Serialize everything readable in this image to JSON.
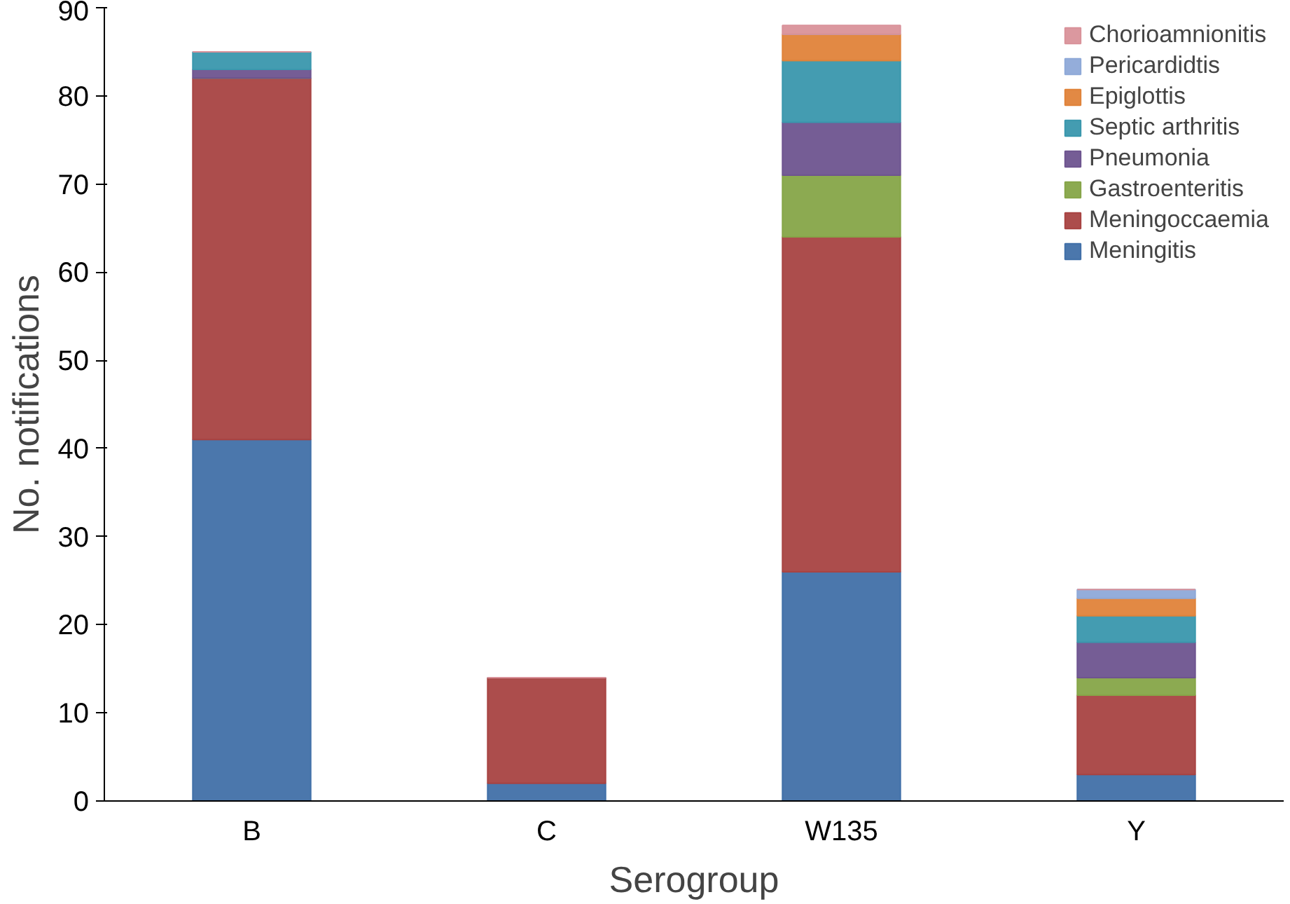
{
  "chart_data": {
    "type": "bar",
    "stacked": true,
    "xlabel": "Serogroup",
    "ylabel": "No. notifications",
    "categories": [
      "B",
      "C",
      "W135",
      "Y"
    ],
    "series": [
      {
        "name": "Meningitis",
        "color": "#4170a8",
        "values": [
          41,
          2,
          26,
          3
        ]
      },
      {
        "name": "Meningoccaemia",
        "color": "#a84342",
        "values": [
          41,
          12,
          38,
          9
        ]
      },
      {
        "name": "Gastroenteritis",
        "color": "#86a548",
        "values": [
          0,
          0,
          7,
          2
        ]
      },
      {
        "name": "Pneumonia",
        "color": "#6e548f",
        "values": [
          1,
          0,
          6,
          4
        ]
      },
      {
        "name": "Septic arthritis",
        "color": "#3a97ad",
        "values": [
          2,
          0,
          7,
          3
        ]
      },
      {
        "name": "Epiglottis",
        "color": "#e0833a",
        "values": [
          0,
          0,
          3,
          2
        ]
      },
      {
        "name": "Pericardidtis",
        "color": "#8ea9d8",
        "values": [
          0,
          0,
          0,
          1
        ]
      },
      {
        "name": "Chorioamnionitis",
        "color": "#d9929a",
        "values": [
          0,
          0,
          1,
          0
        ]
      }
    ],
    "ylim": [
      0,
      90
    ],
    "yticks": [
      0,
      10,
      20,
      30,
      40,
      50,
      60,
      70,
      80,
      90
    ],
    "grid": false,
    "legend": "top right"
  }
}
